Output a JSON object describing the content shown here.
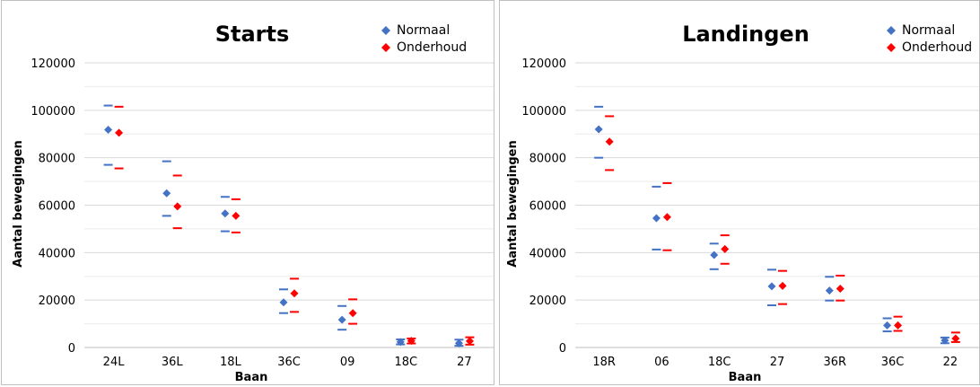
{
  "chart_data": [
    {
      "type": "scatter",
      "title": "Starts",
      "xlabel": "Baan",
      "ylabel": "Aantal bewegingen",
      "ylim": [
        0,
        120000
      ],
      "yticks": [
        "0",
        "20000",
        "40000",
        "60000",
        "80000",
        "100000",
        "120000"
      ],
      "grid": true,
      "legend_position": "top-right",
      "categories": [
        "24L",
        "36L",
        "18L",
        "36C",
        "09",
        "18C",
        "27"
      ],
      "series": [
        {
          "name": "Normaal",
          "color": "#4472c4",
          "values": [
            91800,
            65000,
            56500,
            19000,
            11700,
            2300,
            1800
          ],
          "upper": [
            102000,
            78500,
            63500,
            24500,
            17500,
            3400,
            3300
          ],
          "lower": [
            77000,
            55500,
            49000,
            14500,
            7500,
            1300,
            700
          ]
        },
        {
          "name": "Onderhoud",
          "color": "#ff0000",
          "values": [
            90500,
            59500,
            55500,
            22800,
            14500,
            2800,
            2700
          ],
          "upper": [
            101500,
            72500,
            62500,
            29000,
            20300,
            3800,
            4300
          ],
          "lower": [
            75500,
            50300,
            48500,
            15000,
            10000,
            1700,
            1200
          ]
        }
      ]
    },
    {
      "type": "scatter",
      "title": "Landingen",
      "xlabel": "Baan",
      "ylabel": "Aantal bewegingen",
      "ylim": [
        0,
        120000
      ],
      "yticks": [
        "0",
        "20000",
        "40000",
        "60000",
        "80000",
        "100000",
        "120000"
      ],
      "grid": true,
      "legend_position": "top-right",
      "categories": [
        "18R",
        "06",
        "18C",
        "27",
        "36R",
        "36C",
        "22"
      ],
      "series": [
        {
          "name": "Normaal",
          "color": "#4472c4",
          "values": [
            92000,
            54500,
            39000,
            25800,
            24000,
            9300,
            3000
          ],
          "upper": [
            101500,
            67800,
            43800,
            32800,
            29800,
            12300,
            4200
          ],
          "lower": [
            80000,
            41300,
            33000,
            17800,
            19800,
            6800,
            1800
          ]
        },
        {
          "name": "Onderhoud",
          "color": "#ff0000",
          "values": [
            86800,
            55000,
            41500,
            26000,
            24800,
            9300,
            3800
          ],
          "upper": [
            97500,
            69300,
            47300,
            32300,
            30300,
            13000,
            6300
          ],
          "lower": [
            74800,
            41000,
            35300,
            18300,
            19800,
            7000,
            2300
          ]
        }
      ]
    }
  ]
}
